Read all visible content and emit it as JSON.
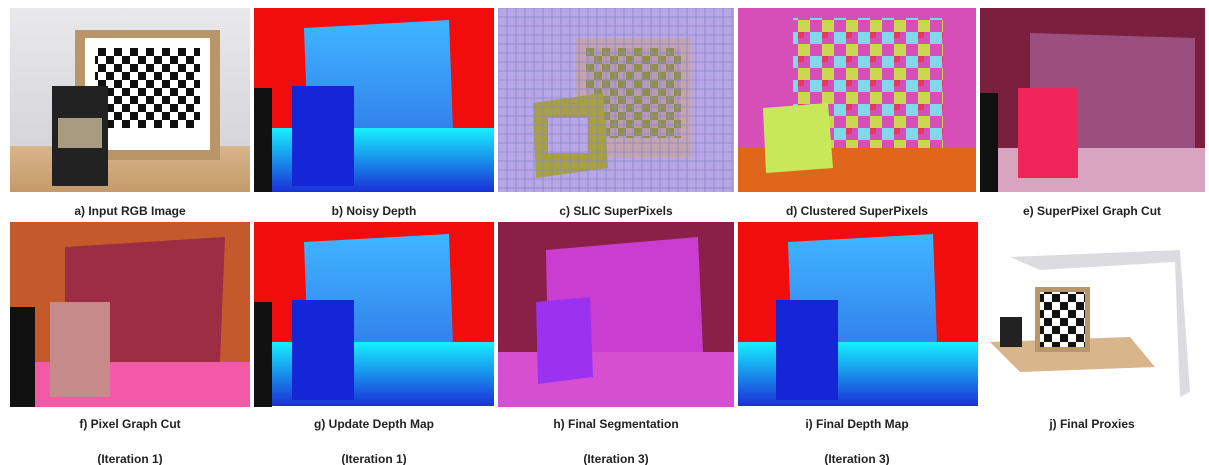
{
  "panels": [
    {
      "caption": "a) Input RGB Image"
    },
    {
      "caption": "b) Noisy Depth"
    },
    {
      "caption": "c) SLIC SuperPixels"
    },
    {
      "caption": "d) Clustered SuperPixels"
    },
    {
      "caption": "e) SuperPixel Graph Cut"
    },
    {
      "caption": "f) Pixel Graph Cut",
      "subcaption": "(Iteration 1)"
    },
    {
      "caption": "g) Update Depth Map",
      "subcaption": "(Iteration 1)"
    },
    {
      "caption": "h) Final Segmentation",
      "subcaption": "(Iteration 3)"
    },
    {
      "caption": "i) Final Depth Map",
      "subcaption": "(Iteration 3)"
    },
    {
      "caption": "j) Final Proxies"
    }
  ]
}
